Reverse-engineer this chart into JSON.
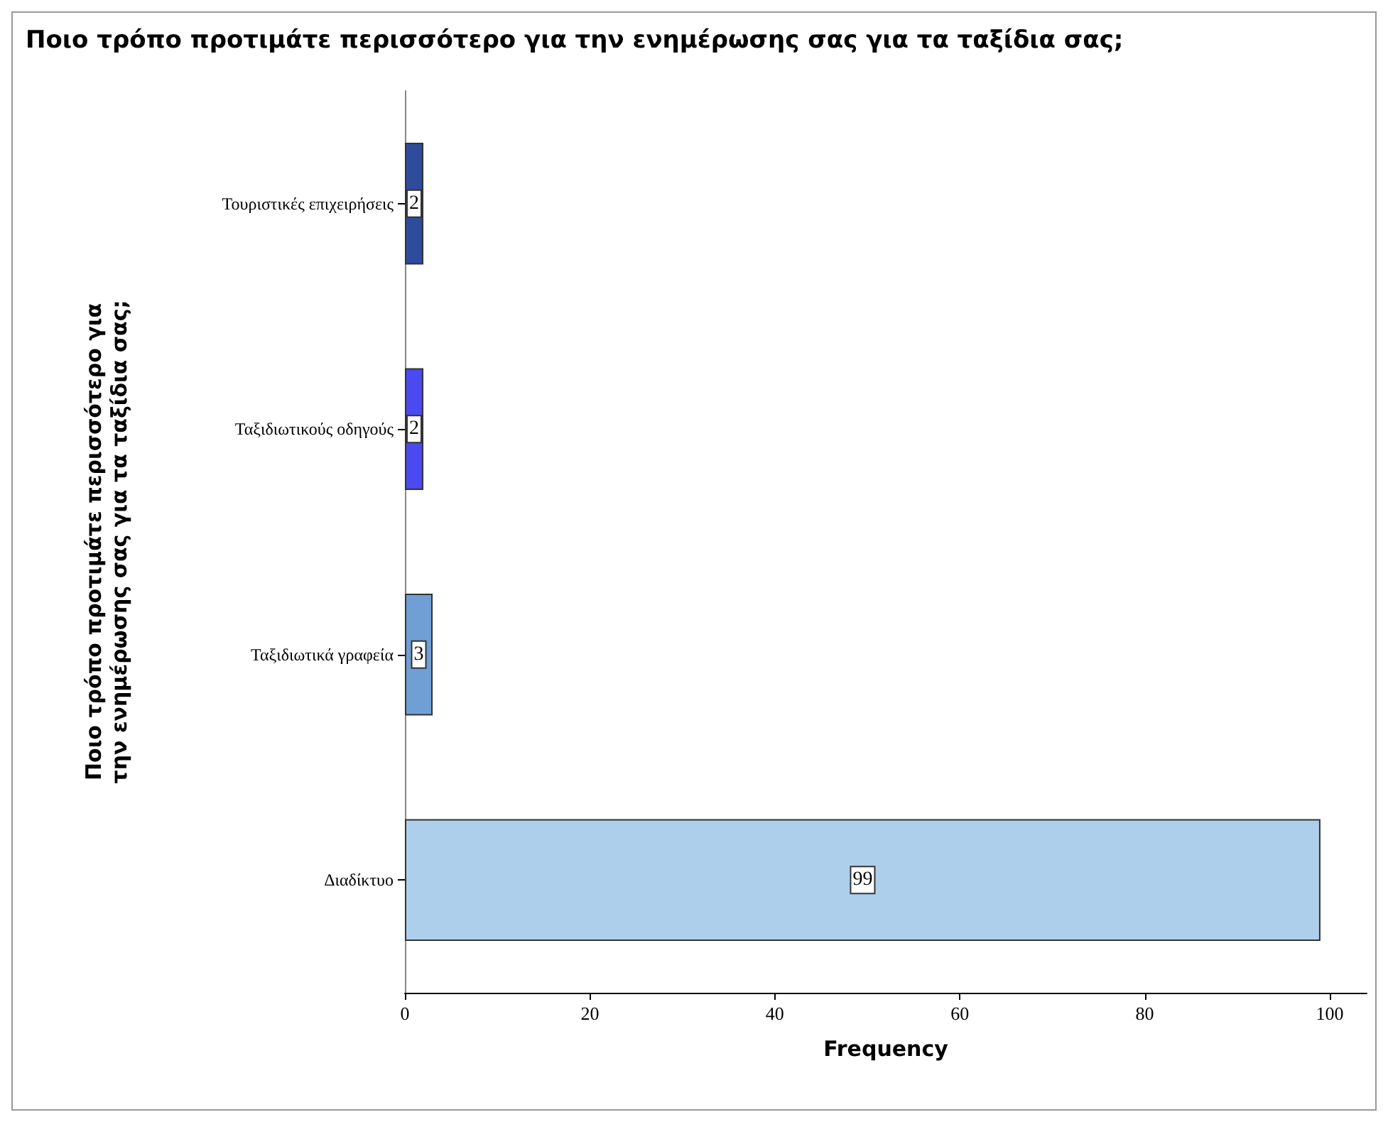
{
  "chart_data": {
    "type": "bar",
    "orientation": "horizontal",
    "title": "Ποιο τρόπο προτιμάτε περισσότερο για την ενημέρωσης σας για τα ταξίδια σας;",
    "xlabel": "Frequency",
    "ylabel": "Ποιο τρόπο προτιμάτε περισσότερο για την ενημέρωσης σας για τα ταξίδια σας;",
    "categories": [
      "Τουριστικές επιχειρήσεις",
      "Ταξιδιωτικούς οδηγούς",
      "Ταξιδιωτικά γραφεία",
      "Διαδίκτυο"
    ],
    "values": [
      2,
      2,
      3,
      99
    ],
    "colors": [
      "#2e4b9c",
      "#4a4af0",
      "#6f9fd4",
      "#aecfec"
    ],
    "xlim": [
      0,
      104
    ],
    "xticks": [
      0,
      20,
      40,
      60,
      80,
      100
    ],
    "grid": false,
    "data_labels": true
  }
}
